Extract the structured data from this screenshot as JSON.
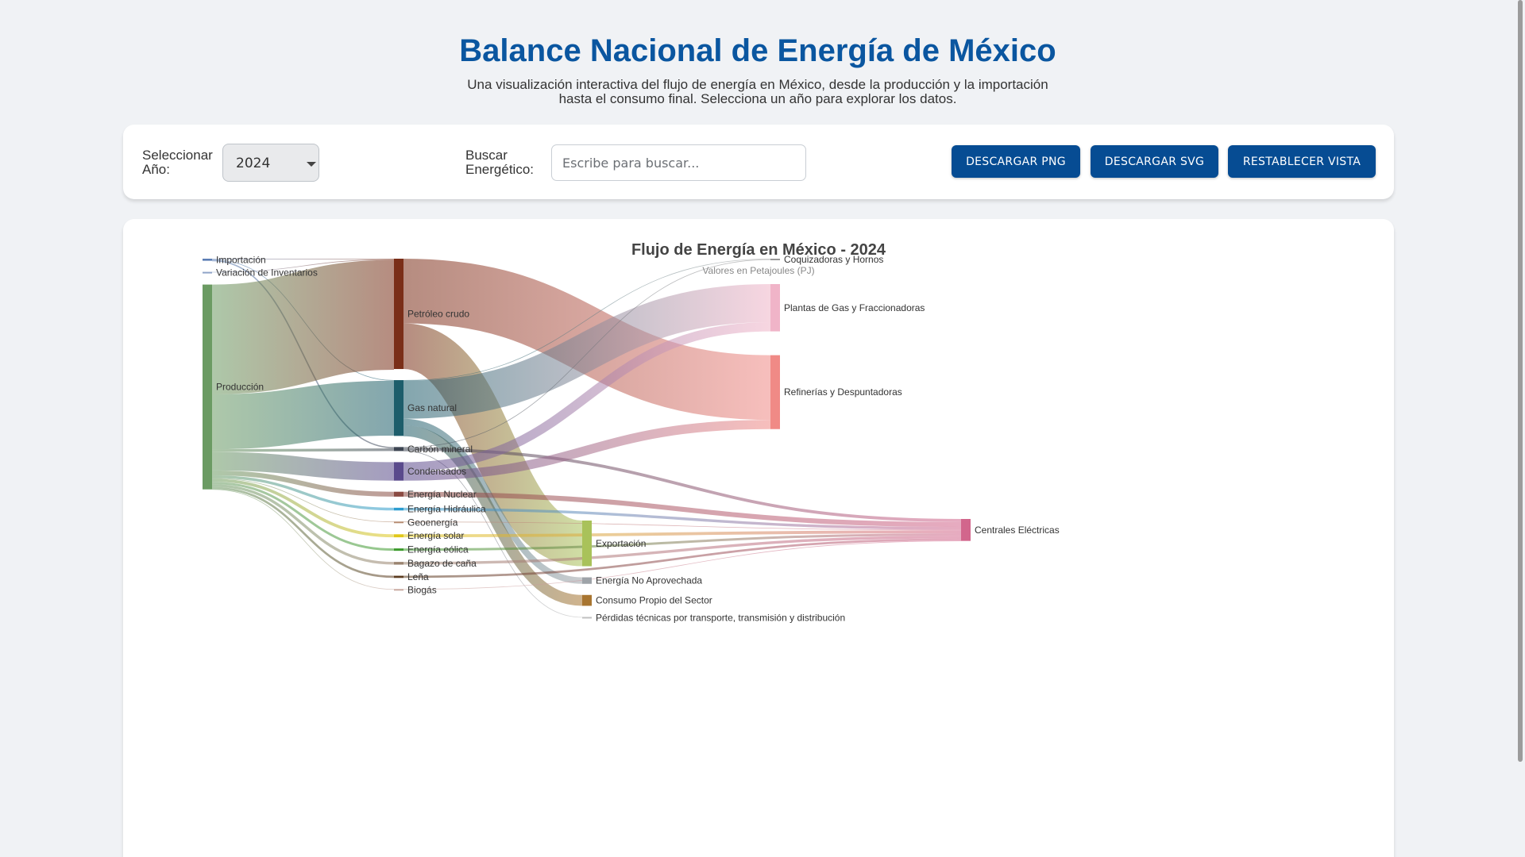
{
  "header": {
    "title": "Balance Nacional de Energía de México",
    "subtitle": "Una visualización interactiva del flujo de energía en México, desde la producción y la importación hasta el consumo final. Selecciona un año para explorar los datos."
  },
  "controls": {
    "year_label": "Seleccionar Año:",
    "year_value": "2024",
    "search_label": "Buscar Energético:",
    "search_placeholder": "Escribe para buscar...",
    "search_value": "",
    "buttons": {
      "download_png": "Descargar PNG",
      "download_svg": "Descargar SVG",
      "reset_view": "Restablecer Vista"
    }
  },
  "colors": {
    "brand": "#0a56a0",
    "button": "#064c93",
    "background": "#f0f2f5"
  },
  "chart_data": {
    "type": "sankey",
    "title": "Flujo de Energía en México - 2024",
    "subtitle": "Valores en Petajoules (PJ)",
    "nodes": [
      {
        "id": "importacion",
        "label": "Importación",
        "column": 0,
        "color": "#5b7db4"
      },
      {
        "id": "variacion",
        "label": "Variación de Inventarios",
        "column": 0,
        "color": "#8fa4c8"
      },
      {
        "id": "produccion",
        "label": "Producción",
        "column": 0,
        "color": "#6b9b63"
      },
      {
        "id": "petroleo",
        "label": "Petróleo crudo",
        "column": 1,
        "color": "#7a2e18"
      },
      {
        "id": "gas",
        "label": "Gas natural",
        "column": 1,
        "color": "#1d5d6b"
      },
      {
        "id": "carbon",
        "label": "Carbón mineral",
        "column": 1,
        "color": "#3d4552"
      },
      {
        "id": "condensados",
        "label": "Condensados",
        "column": 1,
        "color": "#5a4a8c"
      },
      {
        "id": "nuclear",
        "label": "Energía Nuclear",
        "column": 1,
        "color": "#8a4a42"
      },
      {
        "id": "hidraulica",
        "label": "Energía Hidráulica",
        "column": 1,
        "color": "#2d9dd0"
      },
      {
        "id": "geoenergia",
        "label": "Geoenergía",
        "column": 1,
        "color": "#b58a70"
      },
      {
        "id": "solar",
        "label": "Energía solar",
        "column": 1,
        "color": "#e0c81a"
      },
      {
        "id": "eolica",
        "label": "Energía eólica",
        "column": 1,
        "color": "#3c9a2c"
      },
      {
        "id": "bagazo",
        "label": "Bagazo de caña",
        "column": 1,
        "color": "#9b8470"
      },
      {
        "id": "lena",
        "label": "Leña",
        "column": 1,
        "color": "#5b3b1f"
      },
      {
        "id": "biogas",
        "label": "Biogás",
        "column": 1,
        "color": "#c9a9a0"
      },
      {
        "id": "exportacion",
        "label": "Exportación",
        "column": 2,
        "color": "#a9c25a"
      },
      {
        "id": "no_aprovechada",
        "label": "Energía No Aprovechada",
        "column": 2,
        "color": "#9ea3a8"
      },
      {
        "id": "consumo_propio",
        "label": "Consumo Propio del Sector",
        "column": 2,
        "color": "#a87530"
      },
      {
        "id": "perdidas",
        "label": "Pérdidas técnicas por transporte, transmisión y distribución",
        "column": 2,
        "color": "#c0c0c0"
      },
      {
        "id": "coquizadoras",
        "label": "Coquizadoras y Hornos",
        "column": 3,
        "color": "#9a9a9a"
      },
      {
        "id": "plantas_gas",
        "label": "Plantas de Gas y Fraccionadoras",
        "column": 3,
        "color": "#f0b4c8"
      },
      {
        "id": "refinerias",
        "label": "Refinerías y Despuntadoras",
        "column": 3,
        "color": "#f08a86"
      },
      {
        "id": "centrales",
        "label": "Centrales Eléctricas",
        "column": 4,
        "color": "#d2668c"
      }
    ],
    "links": [
      {
        "source": "importacion",
        "target": "petroleo",
        "value": 2
      },
      {
        "source": "importacion",
        "target": "gas",
        "value": 5
      },
      {
        "source": "importacion",
        "target": "carbon",
        "value": 12
      },
      {
        "source": "variacion",
        "target": "petroleo",
        "value": 2
      },
      {
        "source": "produccion",
        "target": "petroleo",
        "value": 1010
      },
      {
        "source": "produccion",
        "target": "gas",
        "value": 505
      },
      {
        "source": "produccion",
        "target": "carbon",
        "value": 25
      },
      {
        "source": "produccion",
        "target": "condensados",
        "value": 170
      },
      {
        "source": "produccion",
        "target": "nuclear",
        "value": 45
      },
      {
        "source": "produccion",
        "target": "hidraulica",
        "value": 25
      },
      {
        "source": "produccion",
        "target": "geoenergia",
        "value": 5
      },
      {
        "source": "produccion",
        "target": "solar",
        "value": 28
      },
      {
        "source": "produccion",
        "target": "eolica",
        "value": 22
      },
      {
        "source": "produccion",
        "target": "bagazo",
        "value": 25
      },
      {
        "source": "produccion",
        "target": "lena",
        "value": 20
      },
      {
        "source": "produccion",
        "target": "biogas",
        "value": 4
      },
      {
        "source": "petroleo",
        "target": "refinerias",
        "value": 595
      },
      {
        "source": "petroleo",
        "target": "exportacion",
        "value": 420
      },
      {
        "source": "gas",
        "target": "plantas_gas",
        "value": 350
      },
      {
        "source": "gas",
        "target": "no_aprovechada",
        "value": 60
      },
      {
        "source": "gas",
        "target": "consumo_propio",
        "value": 100
      },
      {
        "source": "gas",
        "target": "coquizadoras",
        "value": 3
      },
      {
        "source": "carbon",
        "target": "centrales",
        "value": 28
      },
      {
        "source": "carbon",
        "target": "perdidas",
        "value": 6
      },
      {
        "source": "carbon",
        "target": "coquizadoras",
        "value": 3
      },
      {
        "source": "condensados",
        "target": "plantas_gas",
        "value": 85
      },
      {
        "source": "condensados",
        "target": "refinerias",
        "value": 85
      },
      {
        "source": "nuclear",
        "target": "centrales",
        "value": 45
      },
      {
        "source": "hidraulica",
        "target": "centrales",
        "value": 25
      },
      {
        "source": "geoenergia",
        "target": "centrales",
        "value": 5
      },
      {
        "source": "solar",
        "target": "centrales",
        "value": 28
      },
      {
        "source": "eolica",
        "target": "centrales",
        "value": 22
      },
      {
        "source": "bagazo",
        "target": "centrales",
        "value": 25
      },
      {
        "source": "lena",
        "target": "centrales",
        "value": 20
      },
      {
        "source": "biogas",
        "target": "centrales",
        "value": 4
      }
    ]
  }
}
